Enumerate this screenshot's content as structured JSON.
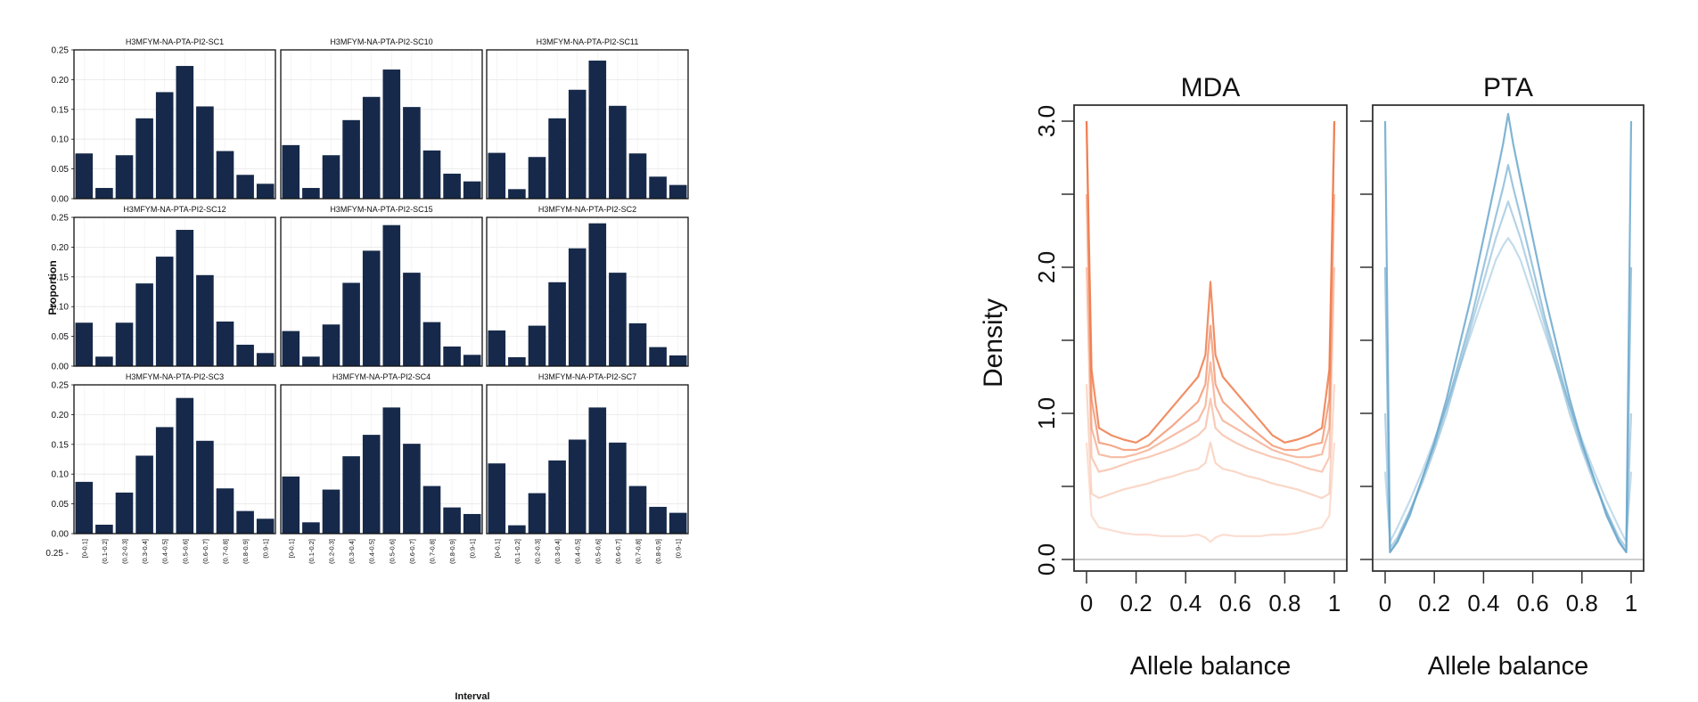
{
  "chart_data": [
    {
      "type": "bar",
      "panel": "faceted-histograms",
      "ylabel": "Proportion",
      "xlabel": "Interval",
      "ylim": [
        0,
        0.25
      ],
      "yticks": [
        "0.00",
        "0.05",
        "0.10",
        "0.15",
        "0.20",
        "0.25"
      ],
      "extra_ytick_label": "0.25 -",
      "categories": [
        "[0-0.1]",
        "(0.1-0.2]",
        "(0.2-0.3]",
        "(0.3-0.4]",
        "(0.4-0.5]",
        "(0.5-0.6]",
        "(0.6-0.7]",
        "(0.7-0.8]",
        "(0.8-0.9]",
        "(0.9-1]"
      ],
      "bar_color": "#16294a",
      "grid": true,
      "facets": [
        {
          "title": "H3MFYM-NA-PTA-PI2-SC1",
          "values": [
            0.076,
            0.018,
            0.073,
            0.135,
            0.179,
            0.223,
            0.155,
            0.08,
            0.04,
            0.025
          ]
        },
        {
          "title": "H3MFYM-NA-PTA-PI2-SC10",
          "values": [
            0.09,
            0.018,
            0.073,
            0.132,
            0.171,
            0.217,
            0.154,
            0.081,
            0.042,
            0.029
          ]
        },
        {
          "title": "H3MFYM-NA-PTA-PI2-SC11",
          "values": [
            0.077,
            0.016,
            0.07,
            0.135,
            0.183,
            0.232,
            0.156,
            0.076,
            0.037,
            0.023
          ]
        },
        {
          "title": "H3MFYM-NA-PTA-PI2-SC12",
          "values": [
            0.073,
            0.016,
            0.073,
            0.139,
            0.184,
            0.229,
            0.153,
            0.075,
            0.036,
            0.022
          ]
        },
        {
          "title": "H3MFYM-NA-PTA-PI2-SC15",
          "values": [
            0.059,
            0.016,
            0.07,
            0.14,
            0.194,
            0.237,
            0.157,
            0.074,
            0.033,
            0.019
          ]
        },
        {
          "title": "H3MFYM-NA-PTA-PI2-SC2",
          "values": [
            0.06,
            0.015,
            0.068,
            0.141,
            0.198,
            0.24,
            0.157,
            0.072,
            0.032,
            0.018
          ]
        },
        {
          "title": "H3MFYM-NA-PTA-PI2-SC3",
          "values": [
            0.087,
            0.015,
            0.069,
            0.131,
            0.179,
            0.228,
            0.156,
            0.076,
            0.038,
            0.025
          ]
        },
        {
          "title": "H3MFYM-NA-PTA-PI2-SC4",
          "values": [
            0.096,
            0.019,
            0.074,
            0.13,
            0.166,
            0.212,
            0.151,
            0.08,
            0.044,
            0.033
          ]
        },
        {
          "title": "H3MFYM-NA-PTA-PI2-SC7",
          "values": [
            0.118,
            0.014,
            0.068,
            0.123,
            0.158,
            0.212,
            0.153,
            0.08,
            0.045,
            0.035
          ]
        }
      ]
    },
    {
      "type": "line",
      "panel": "density-curves",
      "ylabel": "Density",
      "xlim": [
        0,
        1
      ],
      "ylim": [
        0,
        3.0
      ],
      "xticks": [
        "0",
        "0.2",
        "0.4",
        "0.6",
        "0.8",
        "1"
      ],
      "yticks": [
        "0.0",
        "1.0",
        "2.0",
        "3.0"
      ],
      "facets": [
        {
          "title": "MDA",
          "xlabel": "Allele balance",
          "color": "#ef7a4a",
          "x": [
            0,
            0.02,
            0.05,
            0.1,
            0.15,
            0.2,
            0.25,
            0.3,
            0.35,
            0.4,
            0.45,
            0.48,
            0.5,
            0.52,
            0.55,
            0.6,
            0.65,
            0.7,
            0.75,
            0.8,
            0.85,
            0.9,
            0.95,
            0.98,
            1
          ],
          "series": [
            {
              "values": [
                3.0,
                1.3,
                0.9,
                0.85,
                0.82,
                0.8,
                0.85,
                0.95,
                1.05,
                1.15,
                1.25,
                1.4,
                1.9,
                1.4,
                1.25,
                1.15,
                1.05,
                0.95,
                0.85,
                0.8,
                0.82,
                0.85,
                0.9,
                1.3,
                3.0
              ]
            },
            {
              "values": [
                3.0,
                1.1,
                0.8,
                0.78,
                0.75,
                0.75,
                0.78,
                0.85,
                0.92,
                1.0,
                1.08,
                1.2,
                1.6,
                1.2,
                1.08,
                1.0,
                0.92,
                0.85,
                0.78,
                0.75,
                0.75,
                0.78,
                0.8,
                1.1,
                3.0
              ]
            },
            {
              "values": [
                2.5,
                0.9,
                0.72,
                0.7,
                0.7,
                0.72,
                0.75,
                0.8,
                0.85,
                0.9,
                0.95,
                1.05,
                1.35,
                1.05,
                0.95,
                0.9,
                0.85,
                0.8,
                0.75,
                0.72,
                0.7,
                0.7,
                0.72,
                0.9,
                2.5
              ]
            },
            {
              "values": [
                2.0,
                0.7,
                0.6,
                0.62,
                0.65,
                0.68,
                0.7,
                0.73,
                0.76,
                0.8,
                0.85,
                0.9,
                1.1,
                0.9,
                0.85,
                0.8,
                0.76,
                0.73,
                0.7,
                0.68,
                0.65,
                0.62,
                0.6,
                0.7,
                2.0
              ]
            },
            {
              "values": [
                1.2,
                0.45,
                0.42,
                0.45,
                0.48,
                0.5,
                0.52,
                0.55,
                0.57,
                0.6,
                0.62,
                0.66,
                0.8,
                0.66,
                0.62,
                0.6,
                0.57,
                0.55,
                0.52,
                0.5,
                0.48,
                0.45,
                0.42,
                0.45,
                1.2
              ]
            },
            {
              "values": [
                0.8,
                0.3,
                0.22,
                0.2,
                0.18,
                0.17,
                0.17,
                0.16,
                0.16,
                0.16,
                0.17,
                0.15,
                0.12,
                0.15,
                0.17,
                0.16,
                0.16,
                0.16,
                0.17,
                0.17,
                0.18,
                0.2,
                0.22,
                0.3,
                0.8
              ]
            }
          ]
        },
        {
          "title": "PTA",
          "xlabel": "Allele balance",
          "color": "#6aa7cc",
          "x": [
            0,
            0.02,
            0.05,
            0.1,
            0.15,
            0.2,
            0.25,
            0.3,
            0.35,
            0.4,
            0.45,
            0.48,
            0.5,
            0.52,
            0.55,
            0.6,
            0.65,
            0.7,
            0.75,
            0.8,
            0.85,
            0.9,
            0.95,
            0.98,
            1
          ],
          "series": [
            {
              "values": [
                3.0,
                0.05,
                0.12,
                0.3,
                0.55,
                0.8,
                1.1,
                1.45,
                1.8,
                2.2,
                2.6,
                2.85,
                3.1,
                2.85,
                2.6,
                2.2,
                1.8,
                1.45,
                1.1,
                0.8,
                0.55,
                0.3,
                0.12,
                0.05,
                3.0
              ]
            },
            {
              "values": [
                2.0,
                0.05,
                0.13,
                0.32,
                0.55,
                0.78,
                1.05,
                1.35,
                1.65,
                2.0,
                2.35,
                2.55,
                2.7,
                2.55,
                2.35,
                2.0,
                1.65,
                1.35,
                1.05,
                0.78,
                0.55,
                0.32,
                0.13,
                0.05,
                2.0
              ]
            },
            {
              "values": [
                1.0,
                0.08,
                0.15,
                0.33,
                0.52,
                0.75,
                1.0,
                1.3,
                1.6,
                1.9,
                2.2,
                2.35,
                2.45,
                2.35,
                2.2,
                1.9,
                1.6,
                1.3,
                1.0,
                0.75,
                0.52,
                0.33,
                0.15,
                0.08,
                1.0
              ]
            },
            {
              "values": [
                0.6,
                0.12,
                0.22,
                0.4,
                0.6,
                0.82,
                1.05,
                1.3,
                1.55,
                1.8,
                2.05,
                2.15,
                2.2,
                2.15,
                2.05,
                1.8,
                1.55,
                1.3,
                1.05,
                0.82,
                0.6,
                0.4,
                0.22,
                0.12,
                0.6
              ]
            }
          ]
        }
      ]
    }
  ]
}
